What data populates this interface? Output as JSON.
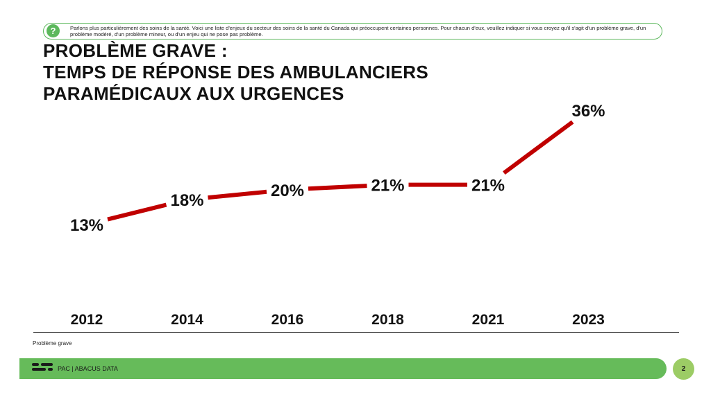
{
  "question": {
    "icon": "question-mark-icon",
    "icon_glyph": "?",
    "text": "Parlons plus particulièrement des soins de la santé. Voici une liste d'enjeux du secteur des soins de la santé du Canada qui préoccupent certaines personnes. Pour chacun d'eux, veuillez indiquer si vous croyez qu'il s'agit d'un problème grave, d'un problème modéré, d'un problème mineur, ou d'un enjeu qui ne pose pas problème."
  },
  "title": {
    "line1": "PROBLÈME GRAVE :",
    "line2": "TEMPS DE RÉPONSE DES AMBULANCIERS",
    "line3": "PARAMÉDICAUX AUX URGENCES"
  },
  "chart_data": {
    "type": "line",
    "title": "PROBLÈME GRAVE : TEMPS DE RÉPONSE DES AMBULANCIERS PARAMÉDICAUX AUX URGENCES",
    "categories": [
      "2012",
      "2014",
      "2016",
      "2018",
      "2021",
      "2023"
    ],
    "series": [
      {
        "name": "Problème grave",
        "values": [
          13,
          18,
          20,
          21,
          21,
          36
        ],
        "labels": [
          "13%",
          "18%",
          "20%",
          "21%",
          "21%",
          "36%"
        ],
        "color": "#c00000"
      }
    ],
    "xlabel": "",
    "ylabel": "",
    "ylim": [
      0,
      40
    ],
    "grid": false,
    "legend": "bottom-left"
  },
  "legend_label": "Problème grave",
  "footer": {
    "logo_icon": "abacus-logo-icon",
    "text": "PAC | ABACUS DATA",
    "page": "2",
    "bar_color": "#66bb5a",
    "page_color": "#9ccc65"
  },
  "colors": {
    "line": "#c00000",
    "accent": "#5cb85c"
  }
}
